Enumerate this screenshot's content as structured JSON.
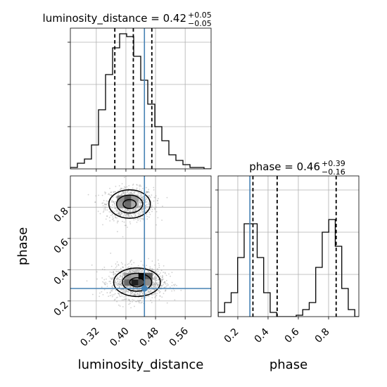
{
  "chart_data": {
    "type": "corner",
    "parameters": [
      "luminosity_distance",
      "phase"
    ],
    "truth": {
      "luminosity_distance": 0.45,
      "phase": 0.28
    },
    "colors": {
      "truth": "#4682b4",
      "hist": "#000000",
      "grid": "#b0b0b0",
      "quantile": "#000000"
    },
    "grid": true,
    "panels": {
      "luminosity_distance": {
        "title": {
          "main": "luminosity_distance = 0.42",
          "sup": "+0.05",
          "sub": "−0.05"
        },
        "xlabel": "luminosity_distance",
        "xlim": [
          0.25,
          0.63
        ],
        "xticks": [
          0.32,
          0.4,
          0.48,
          0.56
        ],
        "xtick_labels": [
          "0.32",
          "0.40",
          "0.48",
          "0.56"
        ],
        "ylim": [
          0,
          1.0
        ],
        "quantiles": [
          0.37,
          0.42,
          0.47
        ],
        "hist_edges": [
          0.25,
          0.269,
          0.288,
          0.307,
          0.326,
          0.345,
          0.364,
          0.383,
          0.402,
          0.421,
          0.44,
          0.459,
          0.478,
          0.497,
          0.516,
          0.535,
          0.554,
          0.573,
          0.592,
          0.611,
          0.63
        ],
        "hist_values": [
          0.01,
          0.04,
          0.07,
          0.17,
          0.42,
          0.67,
          0.86,
          0.96,
          0.94,
          0.8,
          0.63,
          0.46,
          0.3,
          0.2,
          0.1,
          0.06,
          0.03,
          0.01,
          0.01,
          0.0
        ]
      },
      "phase": {
        "title": {
          "main": "phase = 0.46",
          "sup": "+0.39",
          "sub": "−0.16"
        },
        "xlabel": "phase",
        "xlim": [
          0.07,
          1.0
        ],
        "xticks": [
          0.2,
          0.4,
          0.6,
          0.8
        ],
        "xtick_labels": [
          "0.2",
          "0.4",
          "0.6",
          "0.8"
        ],
        "ylim": [
          0,
          1.0
        ],
        "quantiles": [
          0.3,
          0.46,
          0.85
        ],
        "hist_edges": [
          0.07,
          0.113,
          0.156,
          0.199,
          0.242,
          0.285,
          0.328,
          0.371,
          0.414,
          0.457,
          0.5,
          0.543,
          0.586,
          0.629,
          0.672,
          0.715,
          0.758,
          0.801,
          0.844,
          0.887,
          0.93,
          0.973,
          1.0
        ],
        "hist_values": [
          0.03,
          0.1,
          0.17,
          0.42,
          0.66,
          0.66,
          0.42,
          0.17,
          0.03,
          0.0,
          0.0,
          0.0,
          0.01,
          0.05,
          0.1,
          0.35,
          0.6,
          0.69,
          0.5,
          0.2,
          0.05,
          0.0
        ]
      },
      "joint": {
        "ylabel": "phase",
        "xlim": [
          0.25,
          0.63
        ],
        "ylim": [
          0.1,
          1.0
        ],
        "yticks": [
          0.2,
          0.4,
          0.6,
          0.8
        ],
        "ytick_labels": [
          "0.2",
          "0.4",
          "0.6",
          "0.8"
        ],
        "modes": [
          {
            "cx": 0.41,
            "cy": 0.82,
            "sx": 0.032,
            "sy": 0.052,
            "n": 900
          },
          {
            "cx": 0.43,
            "cy": 0.32,
            "sx": 0.036,
            "sy": 0.052,
            "n": 1300
          }
        ],
        "density_cells": [
          {
            "x": 0.395,
            "y": 0.835,
            "w": 0.019,
            "h": 0.04,
            "shade": 0.35
          },
          {
            "x": 0.395,
            "y": 0.795,
            "w": 0.019,
            "h": 0.04,
            "shade": 0.42
          },
          {
            "x": 0.376,
            "y": 0.835,
            "w": 0.019,
            "h": 0.04,
            "shade": 0.55
          },
          {
            "x": 0.414,
            "y": 0.835,
            "w": 0.019,
            "h": 0.04,
            "shade": 0.6
          },
          {
            "x": 0.376,
            "y": 0.795,
            "w": 0.019,
            "h": 0.04,
            "shade": 0.6
          },
          {
            "x": 0.414,
            "y": 0.795,
            "w": 0.019,
            "h": 0.04,
            "shade": 0.68
          },
          {
            "x": 0.433,
            "y": 0.34,
            "w": 0.019,
            "h": 0.04,
            "shade": 0.05
          },
          {
            "x": 0.414,
            "y": 0.3,
            "w": 0.019,
            "h": 0.04,
            "shade": 0.12
          },
          {
            "x": 0.433,
            "y": 0.3,
            "w": 0.019,
            "h": 0.04,
            "shade": 0.3
          },
          {
            "x": 0.452,
            "y": 0.34,
            "w": 0.019,
            "h": 0.04,
            "shade": 0.35
          },
          {
            "x": 0.395,
            "y": 0.3,
            "w": 0.019,
            "h": 0.04,
            "shade": 0.42
          },
          {
            "x": 0.395,
            "y": 0.34,
            "w": 0.019,
            "h": 0.04,
            "shade": 0.6
          },
          {
            "x": 0.452,
            "y": 0.3,
            "w": 0.019,
            "h": 0.04,
            "shade": 0.55
          },
          {
            "x": 0.414,
            "y": 0.34,
            "w": 0.019,
            "h": 0.04,
            "shade": 0.65
          }
        ]
      }
    }
  }
}
